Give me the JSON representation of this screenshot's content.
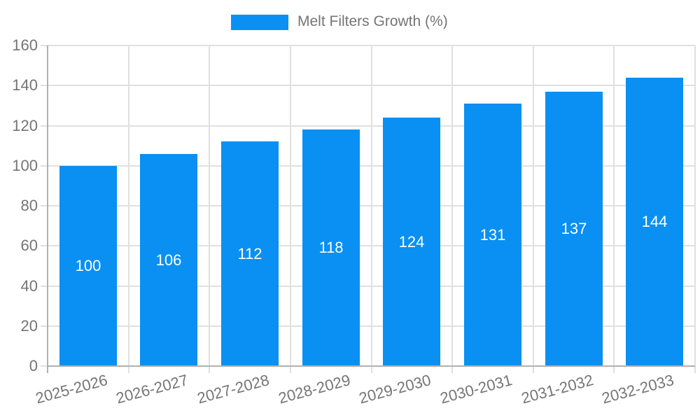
{
  "legend": {
    "label": "Melt Filters Growth (%)"
  },
  "colors": {
    "bar": "#0990f2",
    "bar_label": "#ffffff",
    "grid": "#e0e0e0",
    "axis": "#b0b0b0",
    "text": "#757575",
    "background": "#ffffff"
  },
  "chart_data": {
    "type": "bar",
    "title": "Melt Filters Growth (%)",
    "categories": [
      "2025-2026",
      "2026-2027",
      "2027-2028",
      "2028-2029",
      "2029-2030",
      "2030-2031",
      "2031-2032",
      "2032-2033"
    ],
    "values": [
      100,
      106,
      112,
      118,
      124,
      131,
      137,
      144
    ],
    "xlabel": "",
    "ylabel": "",
    "ylim": [
      0,
      160
    ],
    "yticks": [
      0,
      20,
      40,
      60,
      80,
      100,
      120,
      140,
      160
    ],
    "grid": true,
    "legend_position": "top-center",
    "value_labels": "inside-center"
  }
}
